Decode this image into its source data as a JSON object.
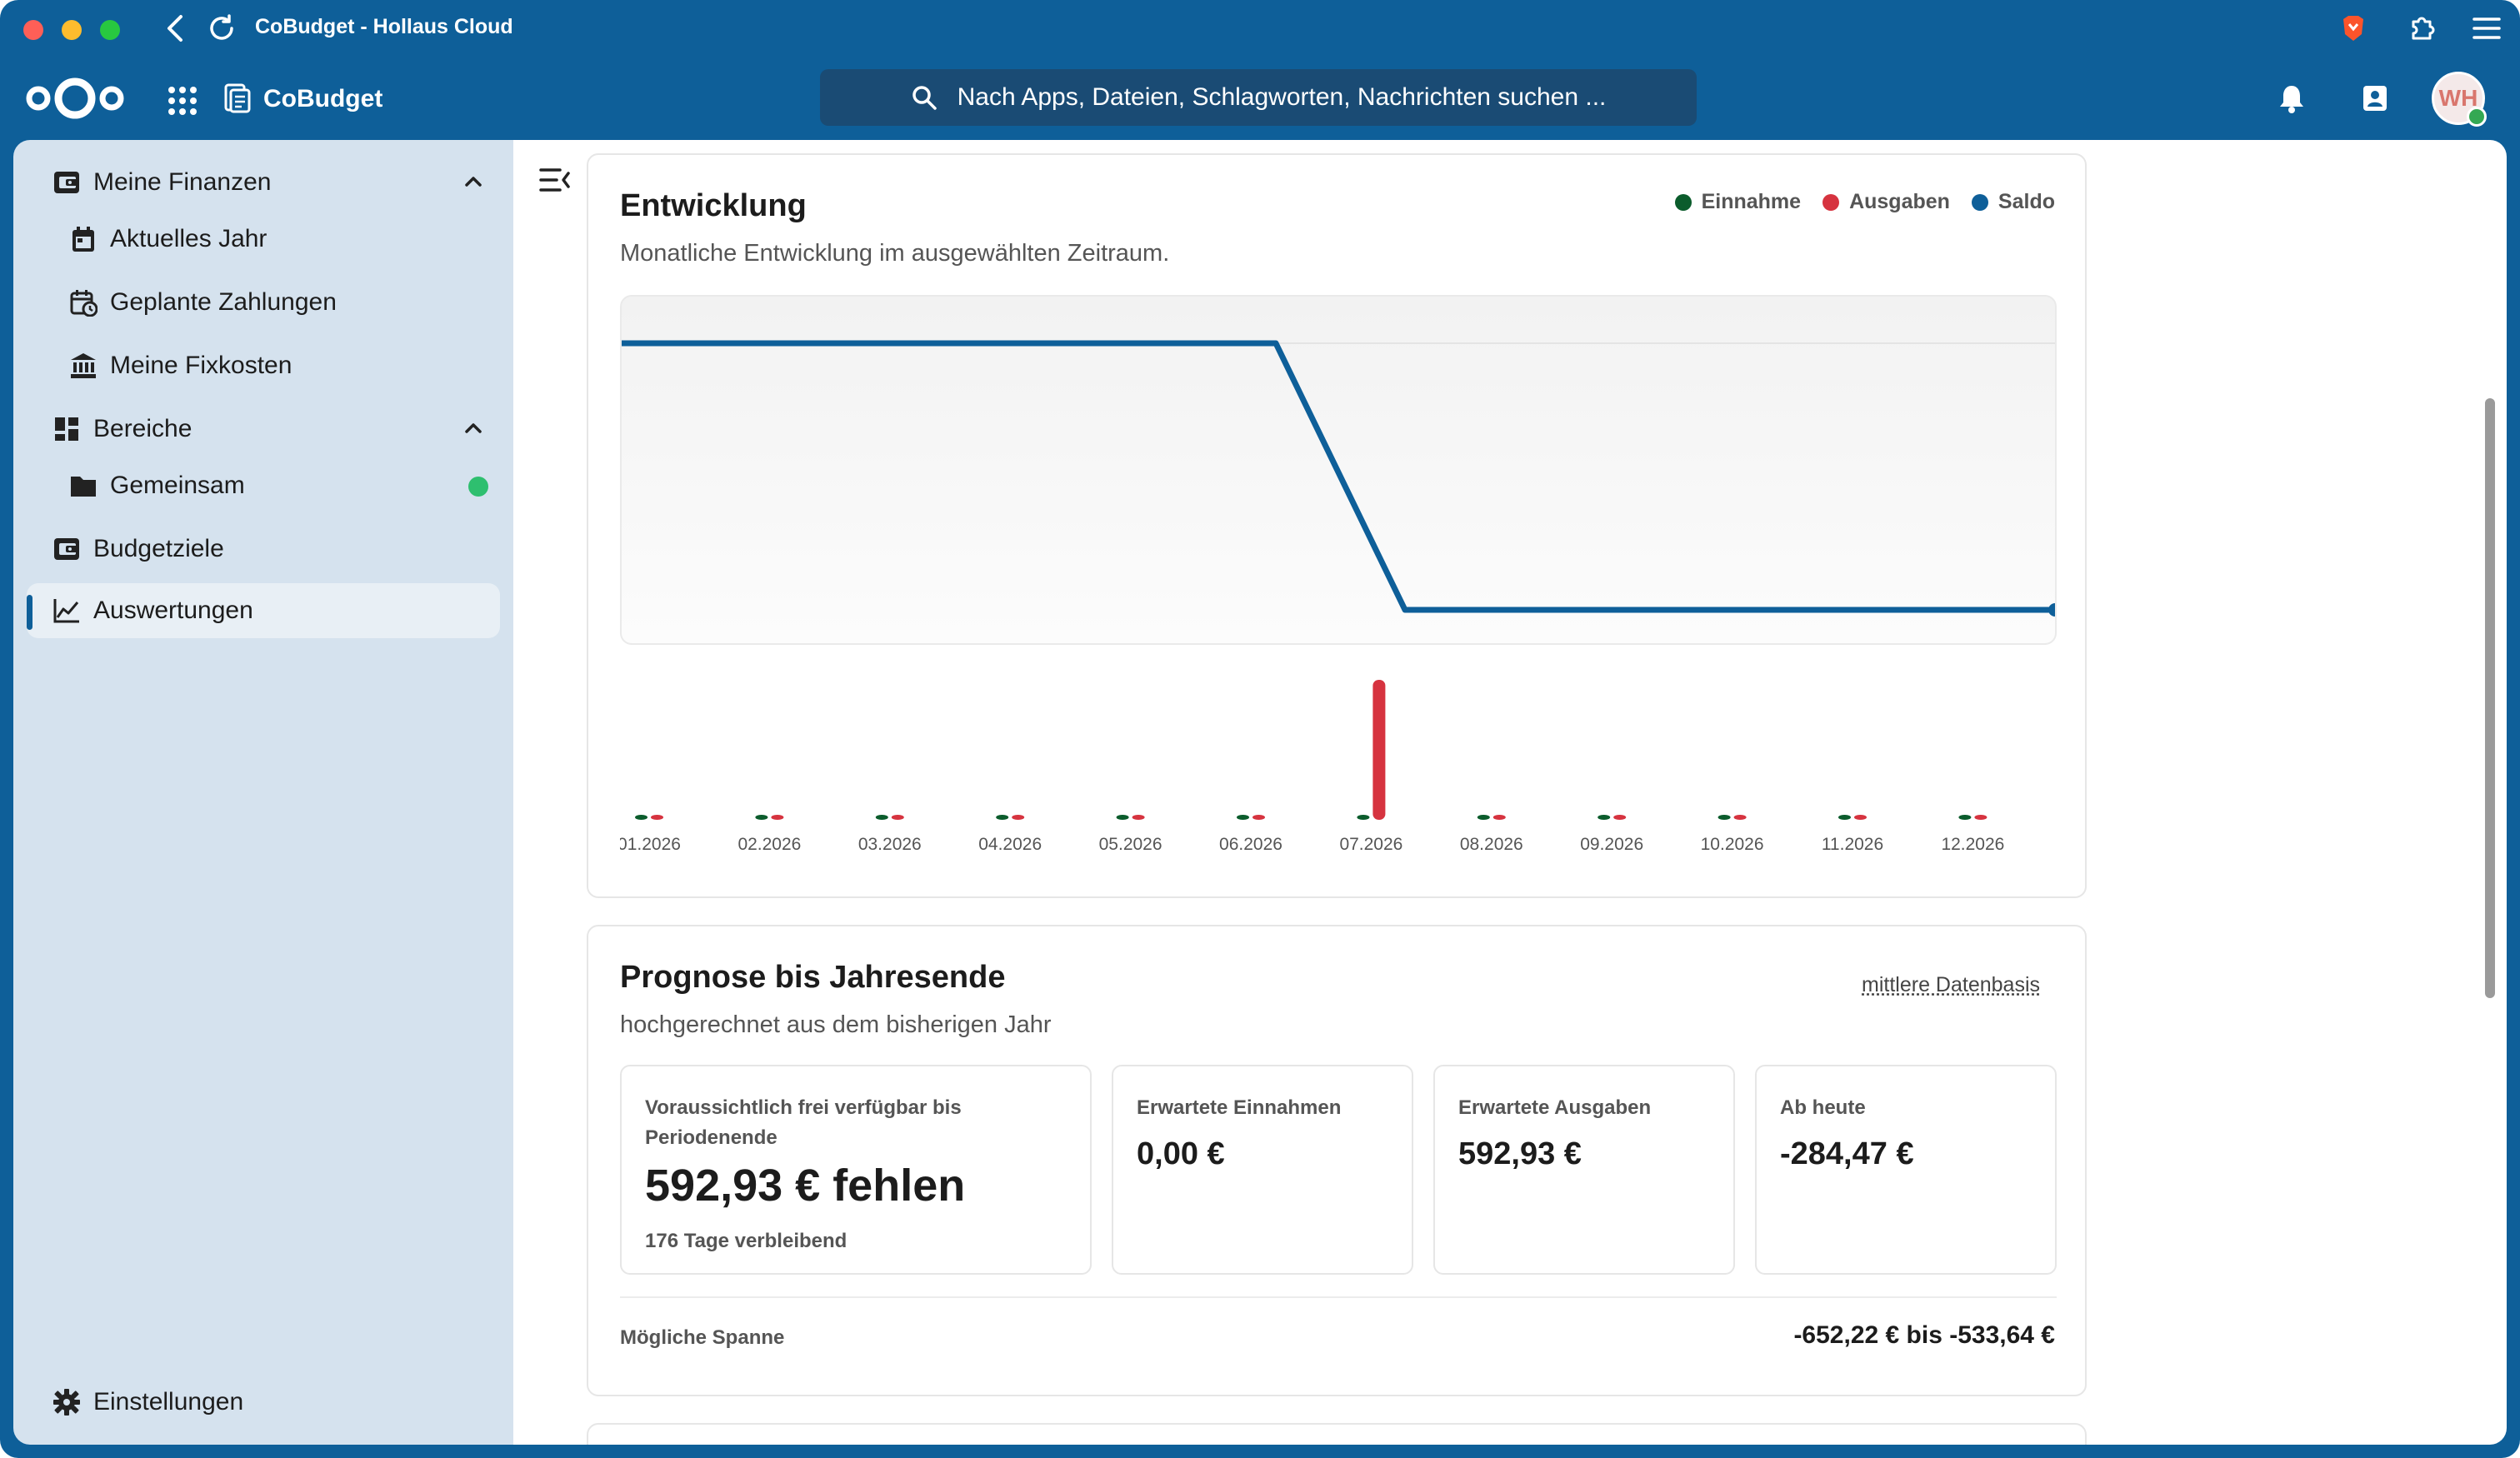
{
  "window": {
    "title": "CoBudget - Hollaus Cloud"
  },
  "header": {
    "app_name": "CoBudget",
    "search_placeholder": "Nach Apps, Dateien, Schlagworten, Nachrichten suchen ...",
    "avatar_initials": "WH"
  },
  "sidebar": {
    "sections": [
      {
        "label": "Meine Finanzen",
        "icon": "wallet-icon"
      },
      {
        "label": "Bereiche",
        "icon": "dashboard-icon"
      }
    ],
    "items": [
      {
        "label": "Aktuelles Jahr",
        "icon": "calendar-icon"
      },
      {
        "label": "Geplante Zahlungen",
        "icon": "calendar-clock-icon"
      },
      {
        "label": "Meine Fixkosten",
        "icon": "bank-icon"
      },
      {
        "label": "Gemeinsam",
        "icon": "folder-icon"
      },
      {
        "label": "Budgetziele",
        "icon": "wallet-icon"
      },
      {
        "label": "Auswertungen",
        "icon": "chart-line-icon"
      }
    ],
    "settings_label": "Einstellungen"
  },
  "entwicklung": {
    "title": "Entwicklung",
    "subtitle": "Monatliche Entwicklung im ausgewählten Zeitraum.",
    "legend": [
      {
        "name": "Einnahme",
        "color": "#0b5c2c"
      },
      {
        "name": "Ausgaben",
        "color": "#d6333f"
      },
      {
        "name": "Saldo",
        "color": "#0e5f99"
      }
    ]
  },
  "chart_data": {
    "type": "bar",
    "categories": [
      "01.2026",
      "02.2026",
      "03.2026",
      "04.2026",
      "05.2026",
      "06.2026",
      "07.2026",
      "08.2026",
      "09.2026",
      "10.2026",
      "11.2026",
      "12.2026"
    ],
    "series": [
      {
        "name": "Einnahme",
        "values": [
          0,
          0,
          0,
          0,
          0,
          0,
          0,
          0,
          0,
          0,
          0,
          0
        ]
      },
      {
        "name": "Ausgaben",
        "values": [
          0,
          0,
          0,
          0,
          0,
          0,
          592.93,
          0,
          0,
          0,
          0,
          0
        ]
      },
      {
        "name": "Saldo",
        "values": [
          0,
          0,
          0,
          0,
          0,
          0,
          -592.93,
          -592.93,
          -592.93,
          -592.93,
          -592.93,
          -592.93
        ]
      }
    ],
    "legend": "top-right",
    "grid": true
  },
  "prognose": {
    "title": "Prognose bis Jahresende",
    "subtitle": "hochgerechnet aus dem bisherigen Jahr",
    "link": "mittlere Datenbasis",
    "kpis": [
      {
        "label": "Voraussichtlich frei verfügbar bis Periodenende",
        "value": "592,93 € fehlen",
        "note": "176 Tage verbleibend"
      },
      {
        "label": "Erwartete Einnahmen",
        "value": "0,00 €"
      },
      {
        "label": "Erwartete Ausgaben",
        "value": "592,93 €"
      },
      {
        "label": "Ab heute",
        "value": "-284,47 €"
      }
    ],
    "spanne_label": "Mögliche Spanne",
    "spanne_value": "-652,22 € bis -533,64 €"
  }
}
